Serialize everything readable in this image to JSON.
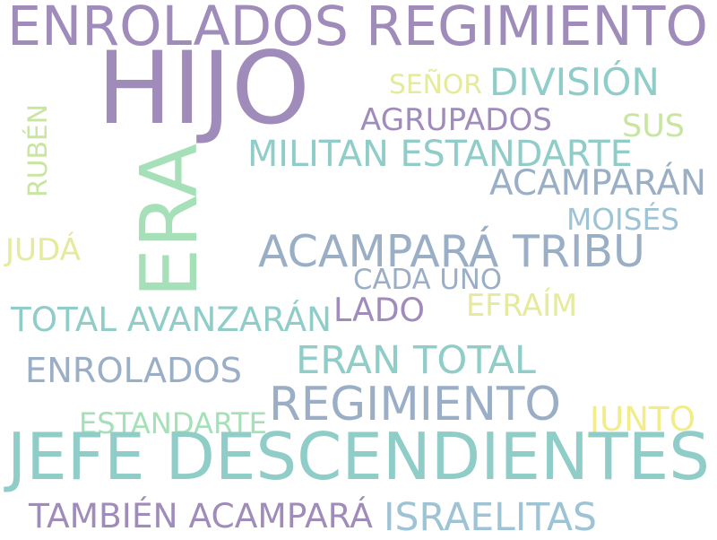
{
  "words": [
    {
      "text": "ENROLADOS REGIMIENTO",
      "color": "#a08cba"
    },
    {
      "text": "HIJO",
      "color": "#a08cba"
    },
    {
      "text": "ERA",
      "color": "#a6e0b8"
    },
    {
      "text": "SEÑOR",
      "color": "#e5ea9c"
    },
    {
      "text": "DIVISIÓN",
      "color": "#90cdc8"
    },
    {
      "text": "AGRUPADOS",
      "color": "#a08cba"
    },
    {
      "text": "SUS",
      "color": "#c8e6a0"
    },
    {
      "text": "RUBÉN",
      "color": "#c8e6a0"
    },
    {
      "text": "MILITAN ESTANDARTE",
      "color": "#90cdc8"
    },
    {
      "text": "ACAMPARÁN",
      "color": "#9aaec6"
    },
    {
      "text": "MOISÉS",
      "color": "#9ec3d4"
    },
    {
      "text": "JUDÁ",
      "color": "#e5ea9c"
    },
    {
      "text": "ACAMPARÁ TRIBU",
      "color": "#9aaec6"
    },
    {
      "text": "CADA UNO",
      "color": "#9aaec6"
    },
    {
      "text": "EFRAÍM",
      "color": "#e5ea9c"
    },
    {
      "text": "TOTAL AVANZARÁN",
      "color": "#90cdc8"
    },
    {
      "text": "LADO",
      "color": "#a08cba"
    },
    {
      "text": "ERAN TOTAL",
      "color": "#90cdc8"
    },
    {
      "text": "ENROLADOS",
      "color": "#9aaec6"
    },
    {
      "text": "REGIMIENTO",
      "color": "#9aaec6"
    },
    {
      "text": "ESTANDARTE",
      "color": "#a6e0b8"
    },
    {
      "text": "JUNTO",
      "color": "#f2ed8a"
    },
    {
      "text": "JEFE DESCENDIENTES",
      "color": "#90cdc8"
    },
    {
      "text": "TAMBIÉN ACAMPARÁ",
      "color": "#a08cba"
    },
    {
      "text": "ISRAELITAS",
      "color": "#9ec3d4"
    }
  ]
}
